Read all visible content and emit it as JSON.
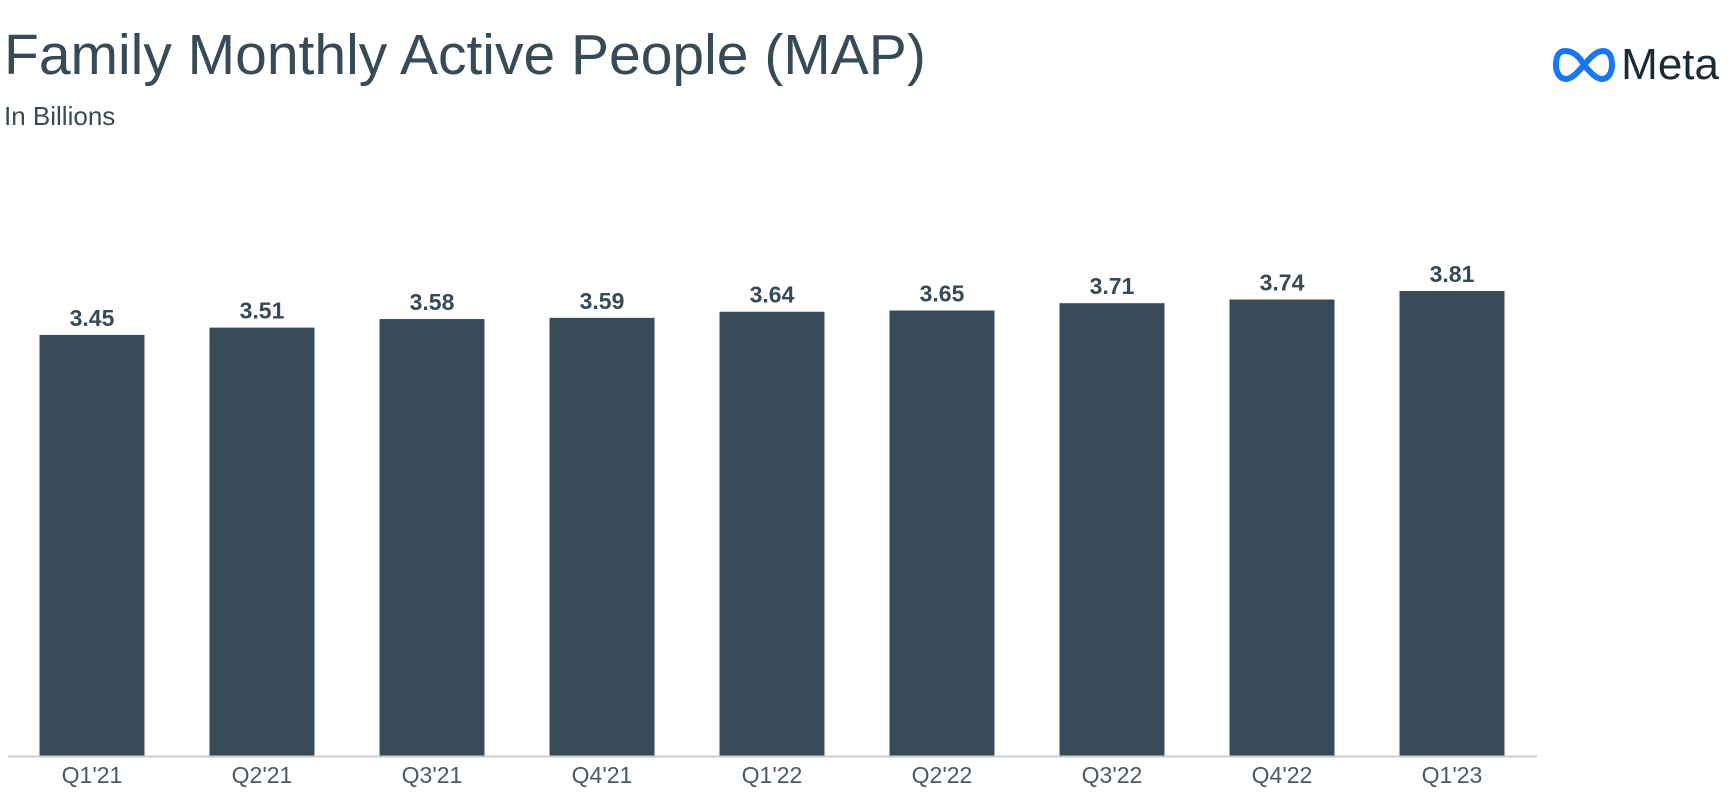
{
  "header": {
    "title": "Family Monthly Active People (MAP)",
    "subtitle": "In Billions"
  },
  "brand": {
    "name": "Meta",
    "icon": "meta-infinity-logo-icon",
    "logo_color": "#1877f2"
  },
  "colors": {
    "bar": "#374a57",
    "label": "#374a57",
    "axis": "#c9cdd1",
    "tick_label": "#4b5963"
  },
  "chart_data": {
    "type": "bar",
    "title": "Family Monthly Active People (MAP)",
    "subtitle": "In Billions",
    "categories": [
      "Q1'21",
      "Q2'21",
      "Q3'21",
      "Q4'21",
      "Q1'22",
      "Q2'22",
      "Q3'22",
      "Q4'22",
      "Q1'23"
    ],
    "values": [
      3.45,
      3.51,
      3.58,
      3.59,
      3.64,
      3.65,
      3.71,
      3.74,
      3.81
    ],
    "value_labels": [
      "3.45",
      "3.51",
      "3.58",
      "3.59",
      "3.64",
      "3.65",
      "3.71",
      "3.74",
      "3.81"
    ],
    "xlabel": "",
    "ylabel": "",
    "ylim": [
      0,
      3.81
    ],
    "grid": false,
    "legend": "none"
  }
}
